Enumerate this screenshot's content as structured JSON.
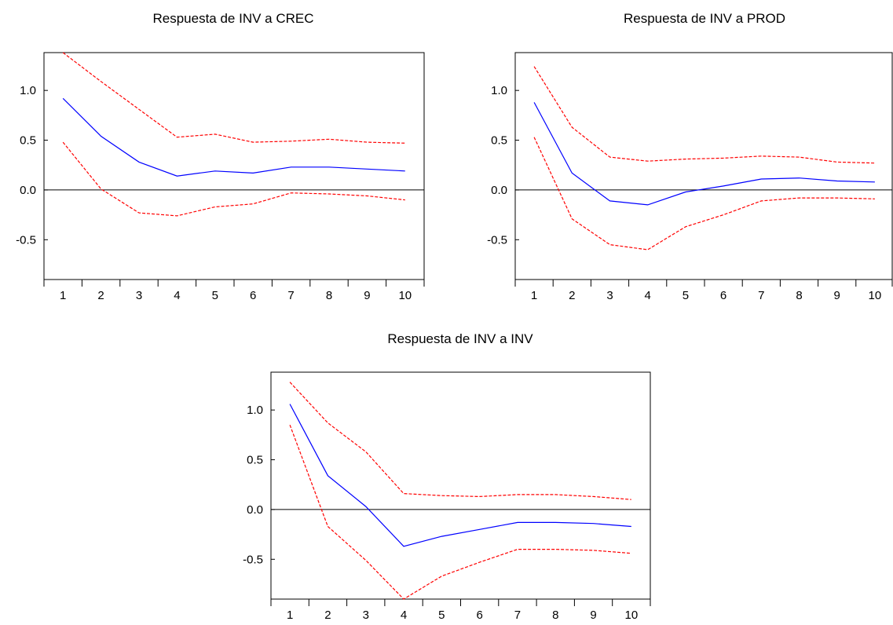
{
  "chart_data": [
    {
      "type": "line",
      "title": "Respuesta de INV a CREC",
      "xlabel": "",
      "ylabel": "",
      "x": [
        1,
        2,
        3,
        4,
        5,
        6,
        7,
        8,
        9,
        10
      ],
      "ylim": [
        -0.9,
        1.38
      ],
      "yticks": [
        -0.5,
        0.0,
        0.5,
        1.0
      ],
      "ytick_labels": [
        "-0.5",
        "0.0",
        "0.5",
        "1.0"
      ],
      "xtick_labels": [
        "1",
        "2",
        "3",
        "4",
        "5",
        "6",
        "7",
        "8",
        "9",
        "10"
      ],
      "grid": false,
      "zero_line": true,
      "series": [
        {
          "role": "response",
          "color": "#0000ff",
          "style": "solid",
          "values": [
            0.92,
            0.54,
            0.28,
            0.14,
            0.19,
            0.17,
            0.23,
            0.23,
            0.21,
            0.19
          ]
        },
        {
          "role": "upper",
          "color": "#ff0000",
          "style": "dashed",
          "values": [
            1.38,
            1.09,
            0.81,
            0.53,
            0.56,
            0.48,
            0.49,
            0.51,
            0.48,
            0.47
          ]
        },
        {
          "role": "lower",
          "color": "#ff0000",
          "style": "dashed",
          "values": [
            0.48,
            0.01,
            -0.23,
            -0.26,
            -0.17,
            -0.14,
            -0.03,
            -0.04,
            -0.06,
            -0.1
          ]
        }
      ]
    },
    {
      "type": "line",
      "title": "Respuesta de INV a PROD",
      "xlabel": "",
      "ylabel": "",
      "x": [
        1,
        2,
        3,
        4,
        5,
        6,
        7,
        8,
        9,
        10
      ],
      "ylim": [
        -0.9,
        1.38
      ],
      "yticks": [
        -0.5,
        0.0,
        0.5,
        1.0
      ],
      "ytick_labels": [
        "-0.5",
        "0.0",
        "0.5",
        "1.0"
      ],
      "xtick_labels": [
        "1",
        "2",
        "3",
        "4",
        "5",
        "6",
        "7",
        "8",
        "9",
        "10"
      ],
      "grid": false,
      "zero_line": true,
      "series": [
        {
          "role": "response",
          "color": "#0000ff",
          "style": "solid",
          "values": [
            0.88,
            0.17,
            -0.11,
            -0.15,
            -0.02,
            0.04,
            0.11,
            0.12,
            0.09,
            0.08
          ]
        },
        {
          "role": "upper",
          "color": "#ff0000",
          "style": "dashed",
          "values": [
            1.24,
            0.63,
            0.33,
            0.29,
            0.31,
            0.32,
            0.34,
            0.33,
            0.28,
            0.27
          ]
        },
        {
          "role": "lower",
          "color": "#ff0000",
          "style": "dashed",
          "values": [
            0.53,
            -0.29,
            -0.55,
            -0.6,
            -0.37,
            -0.25,
            -0.11,
            -0.08,
            -0.08,
            -0.09
          ]
        }
      ]
    },
    {
      "type": "line",
      "title": "Respuesta de INV a INV",
      "xlabel": "",
      "ylabel": "",
      "x": [
        1,
        2,
        3,
        4,
        5,
        6,
        7,
        8,
        9,
        10
      ],
      "ylim": [
        -0.9,
        1.38
      ],
      "yticks": [
        -0.5,
        0.0,
        0.5,
        1.0
      ],
      "ytick_labels": [
        "-0.5",
        "0.0",
        "0.5",
        "1.0"
      ],
      "xtick_labels": [
        "1",
        "2",
        "3",
        "4",
        "5",
        "6",
        "7",
        "8",
        "9",
        "10"
      ],
      "grid": false,
      "zero_line": true,
      "series": [
        {
          "role": "response",
          "color": "#0000ff",
          "style": "solid",
          "values": [
            1.06,
            0.34,
            0.03,
            -0.37,
            -0.27,
            -0.2,
            -0.13,
            -0.13,
            -0.14,
            -0.17
          ]
        },
        {
          "role": "upper",
          "color": "#ff0000",
          "style": "dashed",
          "values": [
            1.28,
            0.87,
            0.58,
            0.16,
            0.14,
            0.13,
            0.15,
            0.15,
            0.13,
            0.1
          ]
        },
        {
          "role": "lower",
          "color": "#ff0000",
          "style": "dashed",
          "values": [
            0.85,
            -0.17,
            -0.51,
            -0.9,
            -0.67,
            -0.53,
            -0.4,
            -0.4,
            -0.41,
            -0.44
          ]
        }
      ]
    }
  ]
}
